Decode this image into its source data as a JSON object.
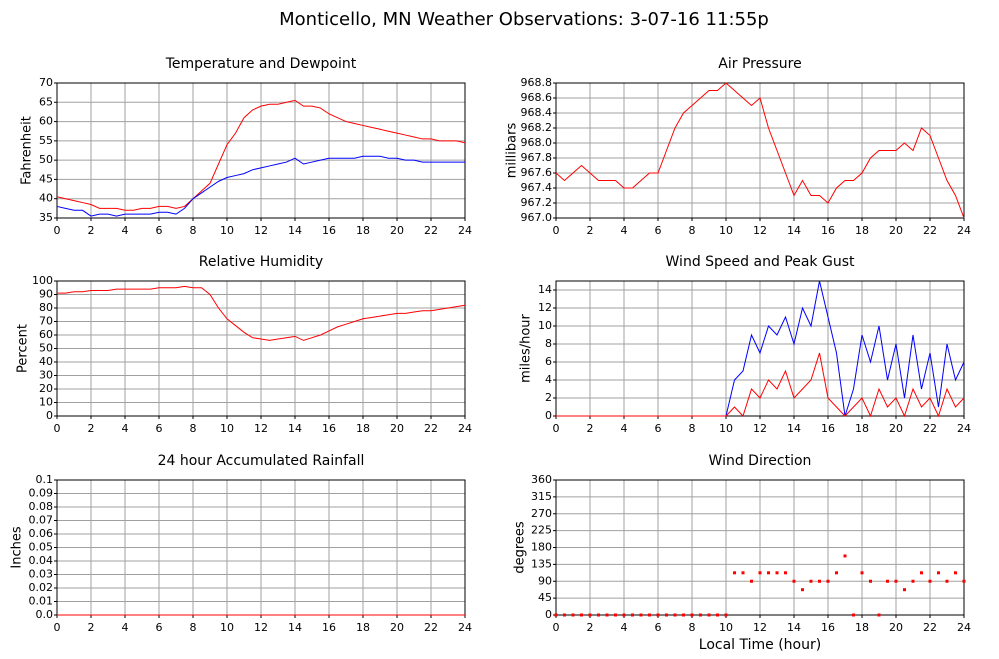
{
  "title": "Monticello, MN Weather Observations: 3-07-16 11:55p",
  "chart_data": [
    {
      "type": "line",
      "title": "Temperature and Dewpoint",
      "ylabel": "Fahrenheit",
      "grid": true,
      "x": [
        0,
        0.5,
        1,
        1.5,
        2,
        2.5,
        3,
        3.5,
        4,
        4.5,
        5,
        5.5,
        6,
        6.5,
        7,
        7.5,
        8,
        8.5,
        9,
        9.5,
        10,
        10.5,
        11,
        11.5,
        12,
        12.5,
        13,
        13.5,
        14,
        14.5,
        15,
        15.5,
        16,
        16.5,
        17,
        17.5,
        18,
        18.5,
        19,
        19.5,
        20,
        20.5,
        21,
        21.5,
        22,
        22.5,
        23,
        23.5,
        24
      ],
      "xlim": [
        0,
        24
      ],
      "xticks": [
        0,
        2,
        4,
        6,
        8,
        10,
        12,
        14,
        16,
        18,
        20,
        22,
        24
      ],
      "ylim": [
        35,
        70
      ],
      "yticks": [
        35,
        40,
        45,
        50,
        55,
        60,
        65,
        70
      ],
      "series": [
        {
          "color": "#ff0000",
          "values": [
            40.5,
            40,
            39.5,
            39,
            38.5,
            37.5,
            37.5,
            37.5,
            37,
            37,
            37.5,
            37.5,
            38,
            38,
            37.5,
            38,
            40,
            42,
            44,
            49,
            54,
            57,
            61,
            63,
            64,
            64.5,
            64.5,
            65,
            65.5,
            64,
            64,
            63.5,
            62,
            61,
            60,
            59.5,
            59,
            58.5,
            58,
            57.5,
            57,
            56.5,
            56,
            55.5,
            55.5,
            55,
            55,
            55,
            54.5
          ]
        },
        {
          "color": "#0000ff",
          "values": [
            38,
            37.5,
            37,
            37,
            35.5,
            36,
            36,
            35.5,
            36,
            36,
            36,
            36,
            36.5,
            36.5,
            36,
            37.5,
            40,
            41.5,
            43,
            44.5,
            45.5,
            46,
            46.5,
            47.5,
            48,
            48.5,
            49,
            49.5,
            50.5,
            49,
            49.5,
            50,
            50.5,
            50.5,
            50.5,
            50.5,
            51,
            51,
            51,
            50.5,
            50.5,
            50,
            50,
            49.5,
            49.5,
            49.5,
            49.5,
            49.5,
            49.5
          ]
        }
      ]
    },
    {
      "type": "line",
      "title": "Air Pressure",
      "ylabel": "millibars",
      "grid": true,
      "x": [
        0,
        0.5,
        1,
        1.5,
        2,
        2.5,
        3,
        3.5,
        4,
        4.5,
        5,
        5.5,
        6,
        6.5,
        7,
        7.5,
        8,
        8.5,
        9,
        9.5,
        10,
        10.5,
        11,
        11.5,
        12,
        12.5,
        13,
        13.5,
        14,
        14.5,
        15,
        15.5,
        16,
        16.5,
        17,
        17.5,
        18,
        18.5,
        19,
        19.5,
        20,
        20.5,
        21,
        21.5,
        22,
        22.5,
        23,
        23.5,
        24
      ],
      "xlim": [
        0,
        24
      ],
      "xticks": [
        0,
        2,
        4,
        6,
        8,
        10,
        12,
        14,
        16,
        18,
        20,
        22,
        24
      ],
      "ylim": [
        967,
        968.8
      ],
      "yticks": [
        {
          "value": 967,
          "label": "967.0"
        },
        967.2,
        967.4,
        967.6,
        967.8,
        {
          "value": 968,
          "label": "968.0"
        },
        968.2,
        968.4,
        968.6,
        968.8
      ],
      "series": [
        {
          "color": "#ff0000",
          "values": [
            967.6,
            967.5,
            967.6,
            967.7,
            967.6,
            967.5,
            967.5,
            967.5,
            967.4,
            967.4,
            967.5,
            967.6,
            967.6,
            967.9,
            968.2,
            968.4,
            968.5,
            968.6,
            968.7,
            968.7,
            968.8,
            968.7,
            968.6,
            968.5,
            968.6,
            968.2,
            967.9,
            967.6,
            967.3,
            967.5,
            967.3,
            967.3,
            967.2,
            967.4,
            967.5,
            967.5,
            967.6,
            967.8,
            967.9,
            967.9,
            967.9,
            968.0,
            967.9,
            968.2,
            968.1,
            967.8,
            967.5,
            967.3,
            967.0
          ]
        }
      ]
    },
    {
      "type": "line",
      "title": "Relative Humidity",
      "ylabel": "Percent",
      "grid": true,
      "x": [
        0,
        0.5,
        1,
        1.5,
        2,
        2.5,
        3,
        3.5,
        4,
        4.5,
        5,
        5.5,
        6,
        6.5,
        7,
        7.5,
        8,
        8.5,
        9,
        9.5,
        10,
        10.5,
        11,
        11.5,
        12,
        12.5,
        13,
        13.5,
        14,
        14.5,
        15,
        15.5,
        16,
        16.5,
        17,
        17.5,
        18,
        18.5,
        19,
        19.5,
        20,
        20.5,
        21,
        21.5,
        22,
        22.5,
        23,
        23.5,
        24
      ],
      "xlim": [
        0,
        24
      ],
      "xticks": [
        0,
        2,
        4,
        6,
        8,
        10,
        12,
        14,
        16,
        18,
        20,
        22,
        24
      ],
      "ylim": [
        0,
        100
      ],
      "yticks": [
        0,
        10,
        20,
        30,
        40,
        50,
        60,
        70,
        80,
        90,
        100
      ],
      "series": [
        {
          "color": "#ff0000",
          "values": [
            91,
            91,
            92,
            92,
            93,
            93,
            93,
            94,
            94,
            94,
            94,
            94,
            95,
            95,
            95,
            96,
            95,
            95,
            90,
            80,
            72,
            67,
            62,
            58,
            57,
            56,
            57,
            58,
            59,
            56,
            58,
            60,
            63,
            66,
            68,
            70,
            72,
            73,
            74,
            75,
            76,
            76,
            77,
            78,
            78,
            79,
            80,
            81,
            82
          ]
        }
      ]
    },
    {
      "type": "line",
      "title": "Wind Speed and Peak Gust",
      "ylabel": "miles/hour",
      "grid": true,
      "x": [
        0,
        0.5,
        1,
        1.5,
        2,
        2.5,
        3,
        3.5,
        4,
        4.5,
        5,
        5.5,
        6,
        6.5,
        7,
        7.5,
        8,
        8.5,
        9,
        9.5,
        10,
        10.5,
        11,
        11.5,
        12,
        12.5,
        13,
        13.5,
        14,
        14.5,
        15,
        15.5,
        16,
        16.5,
        17,
        17.5,
        18,
        18.5,
        19,
        19.5,
        20,
        20.5,
        21,
        21.5,
        22,
        22.5,
        23,
        23.5,
        24
      ],
      "xlim": [
        0,
        24
      ],
      "xticks": [
        0,
        2,
        4,
        6,
        8,
        10,
        12,
        14,
        16,
        18,
        20,
        22,
        24
      ],
      "ylim": [
        0,
        15
      ],
      "yticks": [
        0,
        2,
        4,
        6,
        8,
        10,
        12,
        14
      ],
      "series": [
        {
          "color": "#0000ff",
          "values": [
            0,
            0,
            0,
            0,
            0,
            0,
            0,
            0,
            0,
            0,
            0,
            0,
            0,
            0,
            0,
            0,
            0,
            0,
            0,
            0,
            0,
            4,
            5,
            9,
            7,
            10,
            9,
            11,
            8,
            12,
            10,
            15,
            11,
            7,
            0,
            3,
            9,
            6,
            10,
            4,
            8,
            2,
            9,
            3,
            7,
            1,
            8,
            4,
            6
          ]
        },
        {
          "color": "#ff0000",
          "values": [
            0,
            0,
            0,
            0,
            0,
            0,
            0,
            0,
            0,
            0,
            0,
            0,
            0,
            0,
            0,
            0,
            0,
            0,
            0,
            0,
            0,
            1,
            0,
            3,
            2,
            4,
            3,
            5,
            2,
            3,
            4,
            7,
            2,
            1,
            0,
            1,
            2,
            0,
            3,
            1,
            2,
            0,
            3,
            1,
            2,
            0,
            3,
            1,
            2
          ]
        }
      ]
    },
    {
      "type": "line",
      "title": "24 hour Accumulated Rainfall",
      "ylabel": "Inches",
      "grid": true,
      "x": [
        0,
        24
      ],
      "xlim": [
        0,
        24
      ],
      "xticks": [
        0,
        2,
        4,
        6,
        8,
        10,
        12,
        14,
        16,
        18,
        20,
        22,
        24
      ],
      "ylim": [
        0,
        0.1
      ],
      "yticks": [
        {
          "value": 0,
          "label": "0.0"
        },
        0.01,
        0.02,
        0.03,
        0.04,
        0.05,
        0.06,
        0.07,
        0.08,
        0.09,
        0.1
      ],
      "series": [
        {
          "color": "#ff0000",
          "values": [
            0,
            0
          ]
        }
      ]
    },
    {
      "type": "scatter",
      "title": "Wind Direction",
      "ylabel": "degrees",
      "xlabel": "Local Time (hour)",
      "grid": true,
      "x": [
        0,
        0.5,
        1,
        1.5,
        2,
        2.5,
        3,
        3.5,
        4,
        4.5,
        5,
        5.5,
        6,
        6.5,
        7,
        7.5,
        8,
        8.5,
        9,
        9.5,
        10,
        10.5,
        11,
        11.5,
        12,
        12.5,
        13,
        13.5,
        14,
        14.5,
        15,
        15.5,
        16,
        16.5,
        17,
        17.5,
        18,
        18.5,
        19,
        19.5,
        20,
        20.5,
        21,
        21.5,
        22,
        22.5,
        23,
        23.5,
        24
      ],
      "xlim": [
        0,
        24
      ],
      "xticks": [
        0,
        2,
        4,
        6,
        8,
        10,
        12,
        14,
        16,
        18,
        20,
        22,
        24
      ],
      "ylim": [
        0,
        360
      ],
      "yticks": [
        0,
        45,
        90,
        135,
        180,
        225,
        270,
        315,
        360
      ],
      "series": [
        {
          "color": "#ff0000",
          "values": [
            0,
            0,
            0,
            0,
            0,
            0,
            0,
            0,
            0,
            0,
            0,
            0,
            0,
            0,
            0,
            0,
            0,
            0,
            0,
            0,
            0,
            112.5,
            112.5,
            90,
            112.5,
            112.5,
            112.5,
            112.5,
            90,
            67.5,
            90,
            90,
            90,
            112.5,
            157.5,
            0,
            112.5,
            90,
            0,
            90,
            90,
            67.5,
            90,
            112.5,
            90,
            112.5,
            90,
            112.5,
            90
          ]
        }
      ]
    }
  ]
}
